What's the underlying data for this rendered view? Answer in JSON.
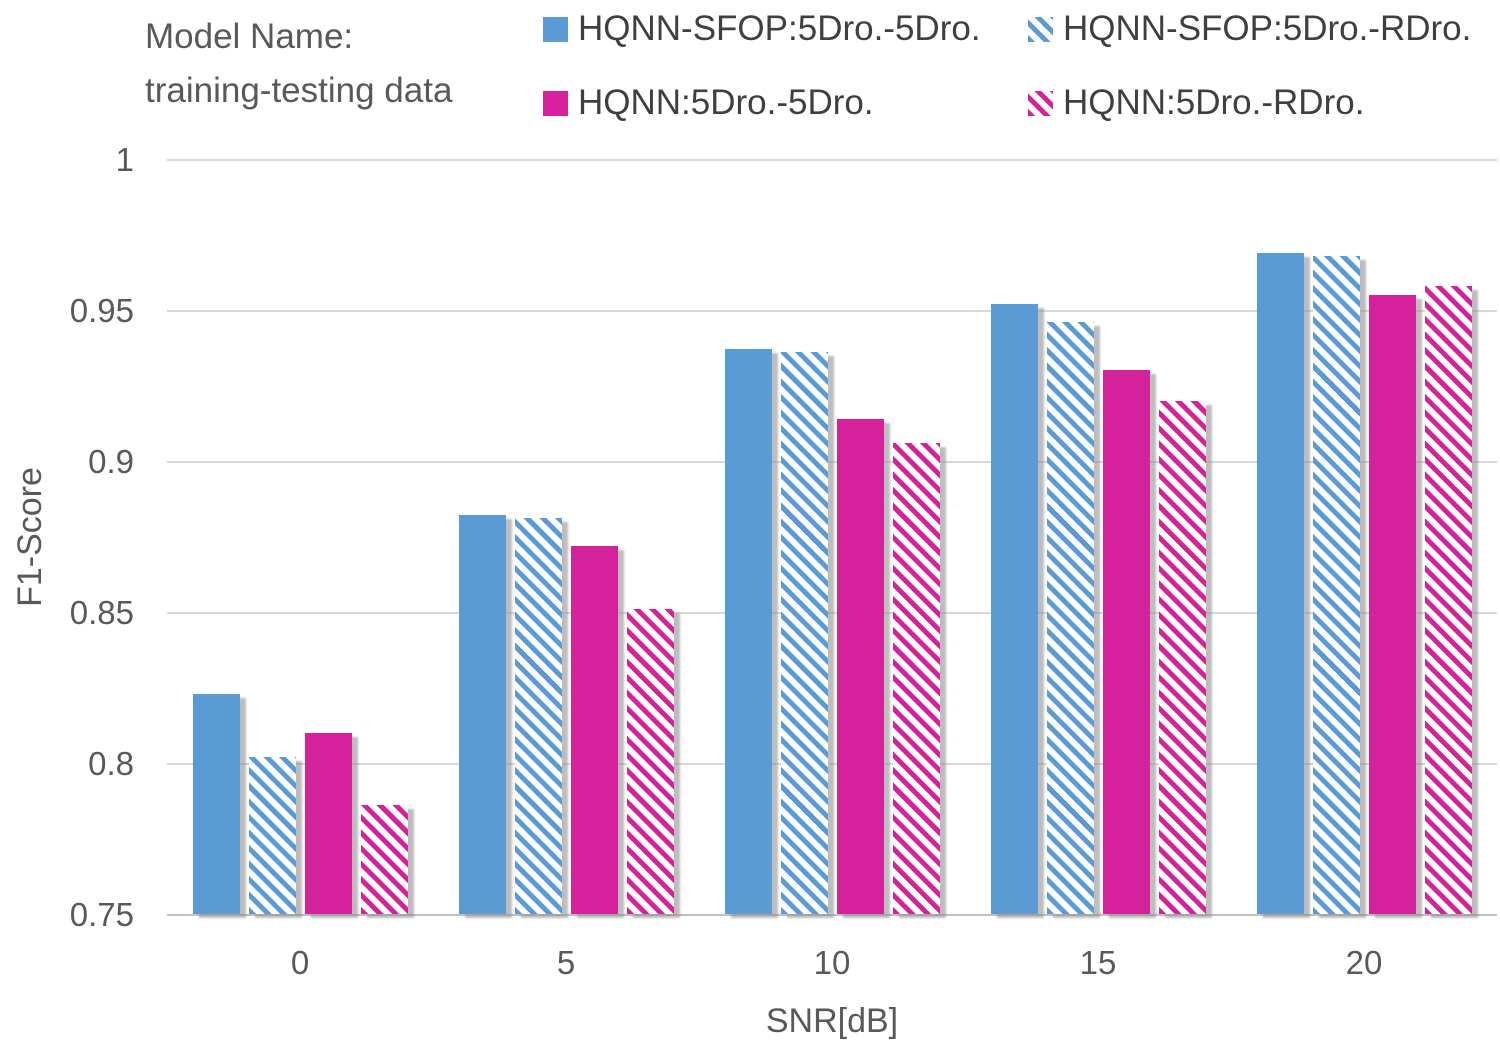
{
  "title": {
    "line1": "Model Name:",
    "line2": "training-testing data"
  },
  "chart_data": {
    "type": "bar",
    "title": "Model Name: training-testing data",
    "xlabel": "SNR[dB]",
    "ylabel": "F1-Score",
    "categories": [
      "0",
      "5",
      "10",
      "15",
      "20"
    ],
    "ylim": [
      0.75,
      1.0
    ],
    "y_step": 0.05,
    "grid": true,
    "legend_position": "top",
    "y_ticks": [
      {
        "label": "1",
        "value": 1.0
      },
      {
        "label": "0.95",
        "value": 0.95
      },
      {
        "label": "0.9",
        "value": 0.9
      },
      {
        "label": "0.85",
        "value": 0.85
      },
      {
        "label": "0.8",
        "value": 0.8
      },
      {
        "label": "0.75",
        "value": 0.75
      }
    ],
    "series": [
      {
        "name": "HQNN-SFOP:5Dro.-5Dro.",
        "color": "#5B9BD5",
        "pattern": "solid",
        "values": [
          0.823,
          0.882,
          0.937,
          0.952,
          0.969
        ]
      },
      {
        "name": "HQNN-SFOP:5Dro.-RDro.",
        "color": "#5B9BD5",
        "pattern": "diagonal-stripes",
        "values": [
          0.802,
          0.881,
          0.936,
          0.946,
          0.968
        ]
      },
      {
        "name": "HQNN:5Dro.-5Dro.",
        "color": "#D6219C",
        "pattern": "solid",
        "values": [
          0.81,
          0.872,
          0.914,
          0.93,
          0.955
        ]
      },
      {
        "name": "HQNN:5Dro.-RDro.",
        "color": "#D6219C",
        "pattern": "diagonal-stripes",
        "values": [
          0.786,
          0.851,
          0.906,
          0.92,
          0.958
        ]
      }
    ],
    "colors": {
      "blue_accent": "#5B9BD5",
      "magenta_accent": "#D6219C",
      "text": "#595959",
      "legend_text": "#3F3F3F",
      "gridline": "#D9D9D9",
      "bar_shadow": "#ABABAB"
    }
  }
}
